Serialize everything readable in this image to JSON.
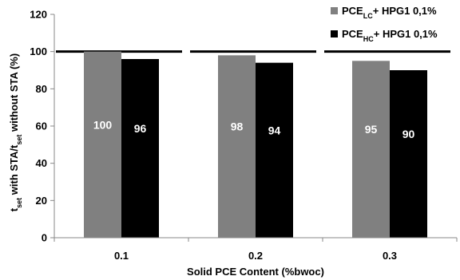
{
  "chart_data": {
    "type": "bar",
    "xlabel": "Solid PCE Content (%bwoc)",
    "ylabel": {
      "p1": "t",
      "p1_sub": "set",
      "p2": " with STA/t",
      "p2_sub": "set",
      "p3": " without STA (%)"
    },
    "categories": [
      "0.1",
      "0.2",
      "0.3"
    ],
    "ylim": [
      0,
      120
    ],
    "yticks": [
      "0",
      "20",
      "40",
      "60",
      "80",
      "100",
      "120"
    ],
    "series": [
      {
        "name_main": "PCE",
        "name_sub": "LC",
        "name_rest": "+ HPG1 0,1%",
        "color": "#808080",
        "values": [
          100,
          98,
          95
        ],
        "labels": [
          "100",
          "98",
          "95"
        ]
      },
      {
        "name_main": "PCE",
        "name_sub": "HC",
        "name_rest": "+ HPG1 0,1%",
        "color": "#000000",
        "values": [
          96,
          94,
          90
        ],
        "labels": [
          "96",
          "94",
          "90"
        ]
      }
    ],
    "reference_line": 100,
    "legend_position": "top-right",
    "grid": false
  }
}
